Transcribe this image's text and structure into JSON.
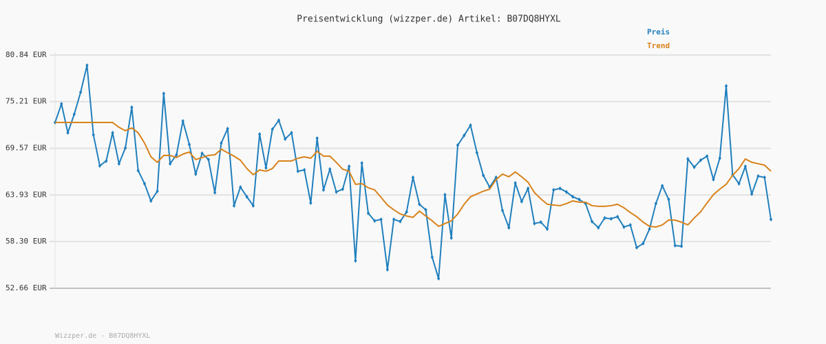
{
  "chart_data": {
    "type": "line",
    "title": "Preisentwicklung (wizzper.de) Artikel: B07DQ8HYXL",
    "series": [
      {
        "name": "Preis",
        "color": "#1f7fbd",
        "markers": true,
        "values": [
          72.69,
          74.94,
          71.45,
          73.69,
          76.35,
          79.59,
          71.2,
          67.46,
          68.04,
          71.45,
          67.71,
          69.62,
          74.52,
          66.88,
          65.3,
          63.22,
          64.39,
          76.19,
          67.71,
          68.79,
          72.86,
          70.04,
          66.46,
          68.96,
          68.21,
          64.22,
          70.2,
          71.95,
          62.64,
          64.88,
          63.72,
          62.64,
          71.28,
          67.21,
          71.87,
          72.95,
          70.7,
          71.45,
          66.8,
          66.96,
          62.97,
          70.78,
          64.55,
          67.05,
          64.3,
          64.64,
          67.38,
          55.99,
          67.79,
          61.73,
          60.81,
          60.98,
          54.91,
          60.98,
          60.73,
          61.89,
          66.05,
          62.81,
          62.14,
          56.41,
          53.83,
          63.97,
          58.74,
          69.95,
          71.12,
          72.36,
          69.04,
          66.3,
          64.88,
          66.05,
          62.06,
          59.98,
          65.38,
          63.14,
          64.72,
          60.48,
          60.65,
          59.82,
          64.55,
          64.72,
          64.3,
          63.72,
          63.39,
          62.89,
          60.73,
          59.98,
          61.15,
          61.06,
          61.31,
          60.06,
          60.31,
          57.57,
          58.07,
          59.82,
          62.89,
          65.05,
          63.39,
          57.82,
          57.74,
          68.29,
          67.29,
          68.13,
          68.62,
          65.8,
          68.37,
          77.1,
          66.38,
          65.3,
          67.38,
          64.05,
          66.21,
          66.05,
          60.98
        ]
      },
      {
        "name": "Trend",
        "color": "#d8821a",
        "markers": false,
        "values": [
          72.69,
          72.69,
          72.69,
          72.69,
          72.69,
          72.69,
          72.69,
          72.69,
          72.69,
          72.69,
          72.11,
          71.7,
          72.03,
          71.45,
          70.2,
          68.54,
          67.88,
          68.71,
          68.71,
          68.46,
          68.87,
          69.12,
          68.21,
          68.46,
          68.71,
          68.79,
          69.46,
          69.04,
          68.62,
          68.13,
          67.13,
          66.38,
          66.96,
          66.8,
          67.13,
          68.04,
          68.04,
          68.04,
          68.37,
          68.54,
          68.37,
          69.21,
          68.62,
          68.62,
          67.88,
          67.05,
          66.8,
          65.22,
          65.3,
          64.8,
          64.55,
          63.64,
          62.72,
          62.14,
          61.64,
          61.39,
          61.23,
          61.98,
          61.39,
          60.81,
          60.15,
          60.48,
          60.81,
          61.64,
          62.81,
          63.72,
          64.05,
          64.39,
          64.64,
          65.8,
          66.46,
          66.13,
          66.71,
          66.13,
          65.47,
          64.22,
          63.47,
          62.81,
          62.72,
          62.64,
          62.89,
          63.22,
          63.06,
          63.06,
          62.64,
          62.56,
          62.56,
          62.64,
          62.81,
          62.39,
          61.81,
          61.31,
          60.65,
          60.15,
          60.06,
          60.31,
          60.9,
          60.9,
          60.65,
          60.31,
          61.15,
          61.89,
          62.97,
          63.97,
          64.64,
          65.22,
          66.3,
          67.13,
          68.29,
          67.88,
          67.71,
          67.54,
          66.8
        ]
      }
    ],
    "ylim": [
      52.66,
      80.84
    ],
    "yticks": [
      {
        "value": 52.66,
        "label": "52.66 EUR"
      },
      {
        "value": 58.3,
        "label": "58.30 EUR"
      },
      {
        "value": 63.93,
        "label": "63.93 EUR"
      },
      {
        "value": 69.57,
        "label": "69.57 EUR"
      },
      {
        "value": 75.21,
        "label": "75.21 EUR"
      },
      {
        "value": 80.84,
        "label": "80.84 EUR"
      }
    ],
    "grid": true,
    "legend": "top-right"
  },
  "footer": "Wizzper.de - B07DQ8HYXL"
}
